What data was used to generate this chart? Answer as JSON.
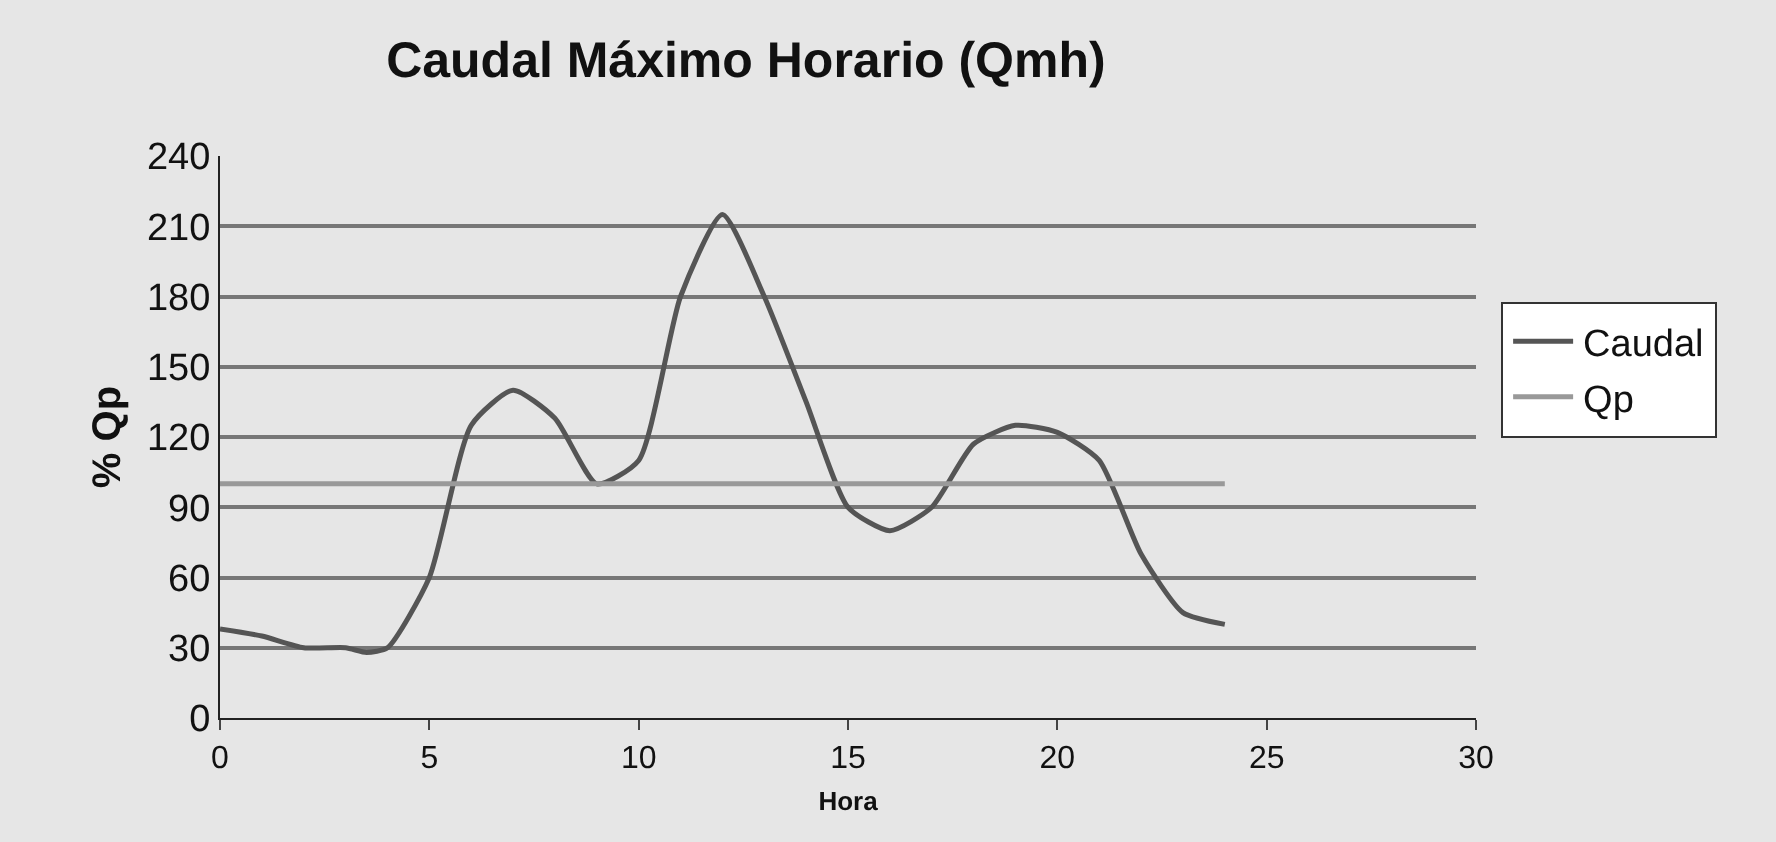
{
  "chart_data": {
    "type": "line",
    "title": "Caudal Máximo Horario (Qmh)",
    "xlabel": "Hora",
    "ylabel": "% Qp",
    "xlim": [
      0,
      30
    ],
    "xticks": [
      0,
      5,
      10,
      15,
      20,
      25,
      30
    ],
    "ylim": [
      0,
      240
    ],
    "yticks": [
      0,
      30,
      60,
      90,
      120,
      150,
      180,
      210,
      240
    ],
    "grid": "y",
    "legend": "right",
    "marker": "none",
    "line_style": "solid",
    "series": [
      {
        "name": "Caudal",
        "color": "#555555",
        "x": [
          0,
          1,
          2,
          3,
          3.5,
          4,
          5,
          6,
          7,
          8,
          9,
          10,
          11,
          12,
          13,
          14,
          15,
          16,
          17,
          18,
          19,
          20,
          21,
          22,
          23,
          24
        ],
        "values": [
          38,
          35,
          30,
          30,
          28,
          30,
          60,
          125,
          140,
          128,
          100,
          110,
          180,
          215,
          180,
          135,
          90,
          80,
          90,
          117,
          125,
          122,
          110,
          70,
          45,
          40
        ]
      },
      {
        "name": "Qp",
        "color": "#999999",
        "x": [
          0,
          24
        ],
        "values": [
          100,
          100
        ]
      }
    ]
  }
}
